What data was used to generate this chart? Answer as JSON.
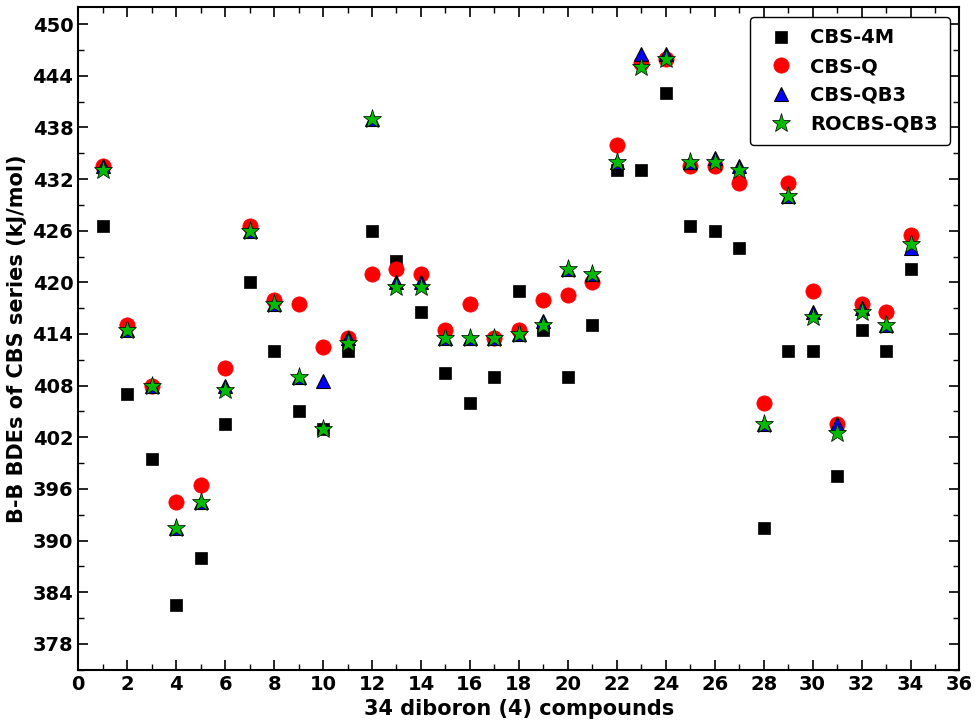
{
  "title": "",
  "xlabel": "34 diboron (4) compounds",
  "ylabel": "B-B BDEs of CBS series (kJ/mol)",
  "xlim": [
    0,
    36
  ],
  "ylim": [
    375,
    452
  ],
  "yticks": [
    378,
    384,
    390,
    396,
    402,
    408,
    414,
    420,
    426,
    432,
    438,
    444,
    450
  ],
  "xticks": [
    0,
    2,
    4,
    6,
    8,
    10,
    12,
    14,
    16,
    18,
    20,
    22,
    24,
    26,
    28,
    30,
    32,
    34,
    36
  ],
  "cbs4m_x": [
    1,
    2,
    3,
    4,
    5,
    6,
    7,
    8,
    9,
    10,
    11,
    12,
    13,
    14,
    15,
    16,
    17,
    18,
    19,
    20,
    21,
    22,
    23,
    24,
    25,
    26,
    27,
    28,
    29,
    30,
    31,
    32,
    33,
    34
  ],
  "cbs4m_y": [
    426.5,
    407.0,
    399.5,
    382.5,
    388.0,
    403.5,
    420.0,
    412.0,
    405.0,
    403.0,
    412.0,
    426.0,
    422.5,
    416.5,
    409.5,
    406.0,
    409.0,
    419.0,
    414.5,
    409.0,
    415.0,
    433.0,
    433.0,
    442.0,
    426.5,
    426.0,
    424.0,
    391.5,
    412.0,
    412.0,
    397.5,
    414.5,
    412.0,
    421.5
  ],
  "cbsq_x": [
    1,
    2,
    3,
    4,
    5,
    6,
    7,
    8,
    9,
    10,
    11,
    12,
    13,
    14,
    15,
    16,
    17,
    18,
    19,
    20,
    21,
    22,
    23,
    24,
    25,
    26,
    27,
    28,
    29,
    30,
    31,
    32,
    33,
    34
  ],
  "cbsq_y": [
    433.5,
    415.0,
    408.0,
    394.5,
    396.5,
    410.0,
    426.5,
    418.0,
    417.5,
    412.5,
    413.5,
    421.0,
    421.5,
    421.0,
    414.5,
    417.5,
    413.5,
    414.5,
    418.0,
    418.5,
    420.0,
    436.0,
    445.5,
    446.0,
    433.5,
    433.5,
    431.5,
    406.0,
    431.5,
    419.0,
    403.5,
    417.5,
    416.5,
    425.5
  ],
  "cbsqb3_x": [
    1,
    2,
    3,
    4,
    5,
    6,
    7,
    8,
    9,
    10,
    11,
    12,
    13,
    14,
    15,
    16,
    17,
    18,
    19,
    20,
    21,
    22,
    23,
    24,
    25,
    26,
    27,
    28,
    29,
    30,
    31,
    32,
    33,
    34
  ],
  "cbsqb3_y": [
    433.5,
    414.5,
    408.0,
    391.5,
    394.5,
    408.0,
    426.0,
    417.5,
    409.0,
    408.5,
    413.5,
    439.0,
    420.0,
    420.0,
    413.5,
    413.5,
    413.5,
    414.0,
    415.5,
    421.5,
    421.0,
    434.0,
    446.5,
    446.5,
    434.0,
    434.5,
    433.5,
    403.5,
    430.0,
    416.5,
    403.5,
    417.0,
    415.0,
    424.0
  ],
  "rocbsqb3_x": [
    1,
    2,
    3,
    4,
    5,
    6,
    7,
    8,
    9,
    10,
    11,
    12,
    13,
    14,
    15,
    16,
    17,
    18,
    19,
    20,
    21,
    22,
    23,
    24,
    25,
    26,
    27,
    28,
    29,
    30,
    31,
    32,
    33,
    34
  ],
  "rocbsqb3_y": [
    433.0,
    414.5,
    408.0,
    391.5,
    394.5,
    407.5,
    426.0,
    417.5,
    409.0,
    403.0,
    413.0,
    439.0,
    419.5,
    419.5,
    413.5,
    413.5,
    413.5,
    414.0,
    415.0,
    421.5,
    421.0,
    434.0,
    445.0,
    446.0,
    434.0,
    434.0,
    433.0,
    403.5,
    430.0,
    416.0,
    402.5,
    416.5,
    415.0,
    424.5
  ],
  "cbs4m_color": "#000000",
  "cbsq_color": "#ff0000",
  "cbsqb3_color": "#0000ff",
  "rocbsqb3_color": "#00bb00",
  "legend_labels": [
    "CBS-4M",
    "CBS-Q",
    "CBS-QB3",
    "ROCBS-QB3"
  ],
  "fontsize_axis": 15,
  "fontsize_tick": 14,
  "fontsize_legend": 14
}
